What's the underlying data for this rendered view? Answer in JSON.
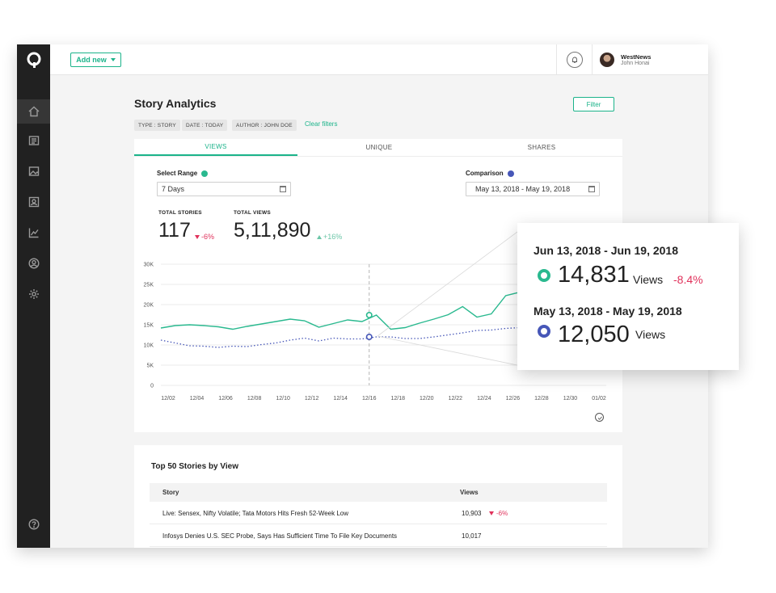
{
  "colors": {
    "accent": "#1bb38a",
    "current_series": "#2ab98f",
    "comparison_series": "#4757b8",
    "negative": "#e0315b",
    "positive": "#6cc6a8",
    "sidebar": "#212121"
  },
  "sidebar": {
    "logo_icon": "quintype-logo-icon",
    "items": [
      {
        "icon": "home-icon"
      },
      {
        "icon": "stories-icon"
      },
      {
        "icon": "media-icon"
      },
      {
        "icon": "collections-icon"
      },
      {
        "icon": "analytics-icon"
      },
      {
        "icon": "users-icon"
      },
      {
        "icon": "settings-icon"
      },
      {
        "icon": "help-icon"
      }
    ]
  },
  "topbar": {
    "add_new": "Add new",
    "user_name": "WestNews",
    "user_subtitle": "John Honai"
  },
  "page": {
    "title": "Story Analytics",
    "filter_button": "Filter",
    "chips": [
      "TYPE : STORY",
      "DATE : TODAY",
      "AUTHOR : JOHN DOE"
    ],
    "clear_filters": "Clear filters"
  },
  "tabs": [
    "VIEWS",
    "UNIQUE",
    "SHARES"
  ],
  "controls": {
    "select_range_label": "Select Range",
    "select_range_value": "7 Days",
    "comparison_label": "Comparison",
    "comparison_value": "May 13, 2018 - May 19, 2018"
  },
  "stats": {
    "total_stories_label": "TOTAL STORIES",
    "total_stories_value": "117",
    "total_stories_delta": "-6%",
    "total_views_label": "TOTAL VIEWS",
    "total_views_value": "5,11,890",
    "total_views_delta": "+16%"
  },
  "chart_data": {
    "type": "line",
    "title": "",
    "xlabel": "",
    "ylabel": "",
    "ylim": [
      0,
      30000
    ],
    "y_ticks": [
      "0",
      "5K",
      "10K",
      "15K",
      "20K",
      "25K",
      "30K"
    ],
    "x_ticks": [
      "12/02",
      "12/04",
      "12/06",
      "12/08",
      "12/10",
      "12/12",
      "12/14",
      "12/16",
      "12/18",
      "12/20",
      "12/22",
      "12/24",
      "12/26",
      "12/28",
      "12/30",
      "01/02"
    ],
    "grid": true,
    "series": [
      {
        "values": [
          14200,
          14800,
          15000,
          14800,
          14500,
          13900,
          14600,
          15200,
          15800,
          16400,
          16000,
          14400,
          15300,
          16200,
          15800,
          17400,
          13900,
          14300,
          15400,
          16400,
          17500,
          19500,
          16900,
          17700,
          22200,
          23100,
          28700,
          21700,
          24000,
          23900,
          25800,
          25000
        ]
      },
      {
        "values": [
          11200,
          10500,
          9800,
          9700,
          9400,
          9700,
          9600,
          10100,
          10500,
          11200,
          11700,
          11000,
          11700,
          11500,
          11500,
          12000,
          12000,
          11600,
          11600,
          12000,
          12500,
          13000,
          13600,
          13700,
          14100,
          14300,
          14600,
          14500,
          14800,
          15000,
          15300,
          15200
        ]
      }
    ],
    "highlight_x": "12/16"
  },
  "tooltip": {
    "current_range": "Jun 13, 2018 - Jun 19, 2018",
    "current_views": "14,831",
    "current_unit": "Views",
    "current_delta": "-8.4%",
    "compare_range": "May 13, 2018 - May 19, 2018",
    "compare_views": "12,050",
    "compare_unit": "Views"
  },
  "table": {
    "title": "Top 50 Stories by View",
    "columns": [
      "Story",
      "Views"
    ],
    "rows": [
      {
        "story": "Live: Sensex, Nifty Volatile; Tata Motors Hits Fresh 52-Week Low",
        "views": "10,903",
        "delta": "-6%"
      },
      {
        "story": "Infosys Denies U.S. SEC Probe, Says Has Sufficient Time To File Key Documents",
        "views": "10,017",
        "delta": ""
      }
    ]
  }
}
